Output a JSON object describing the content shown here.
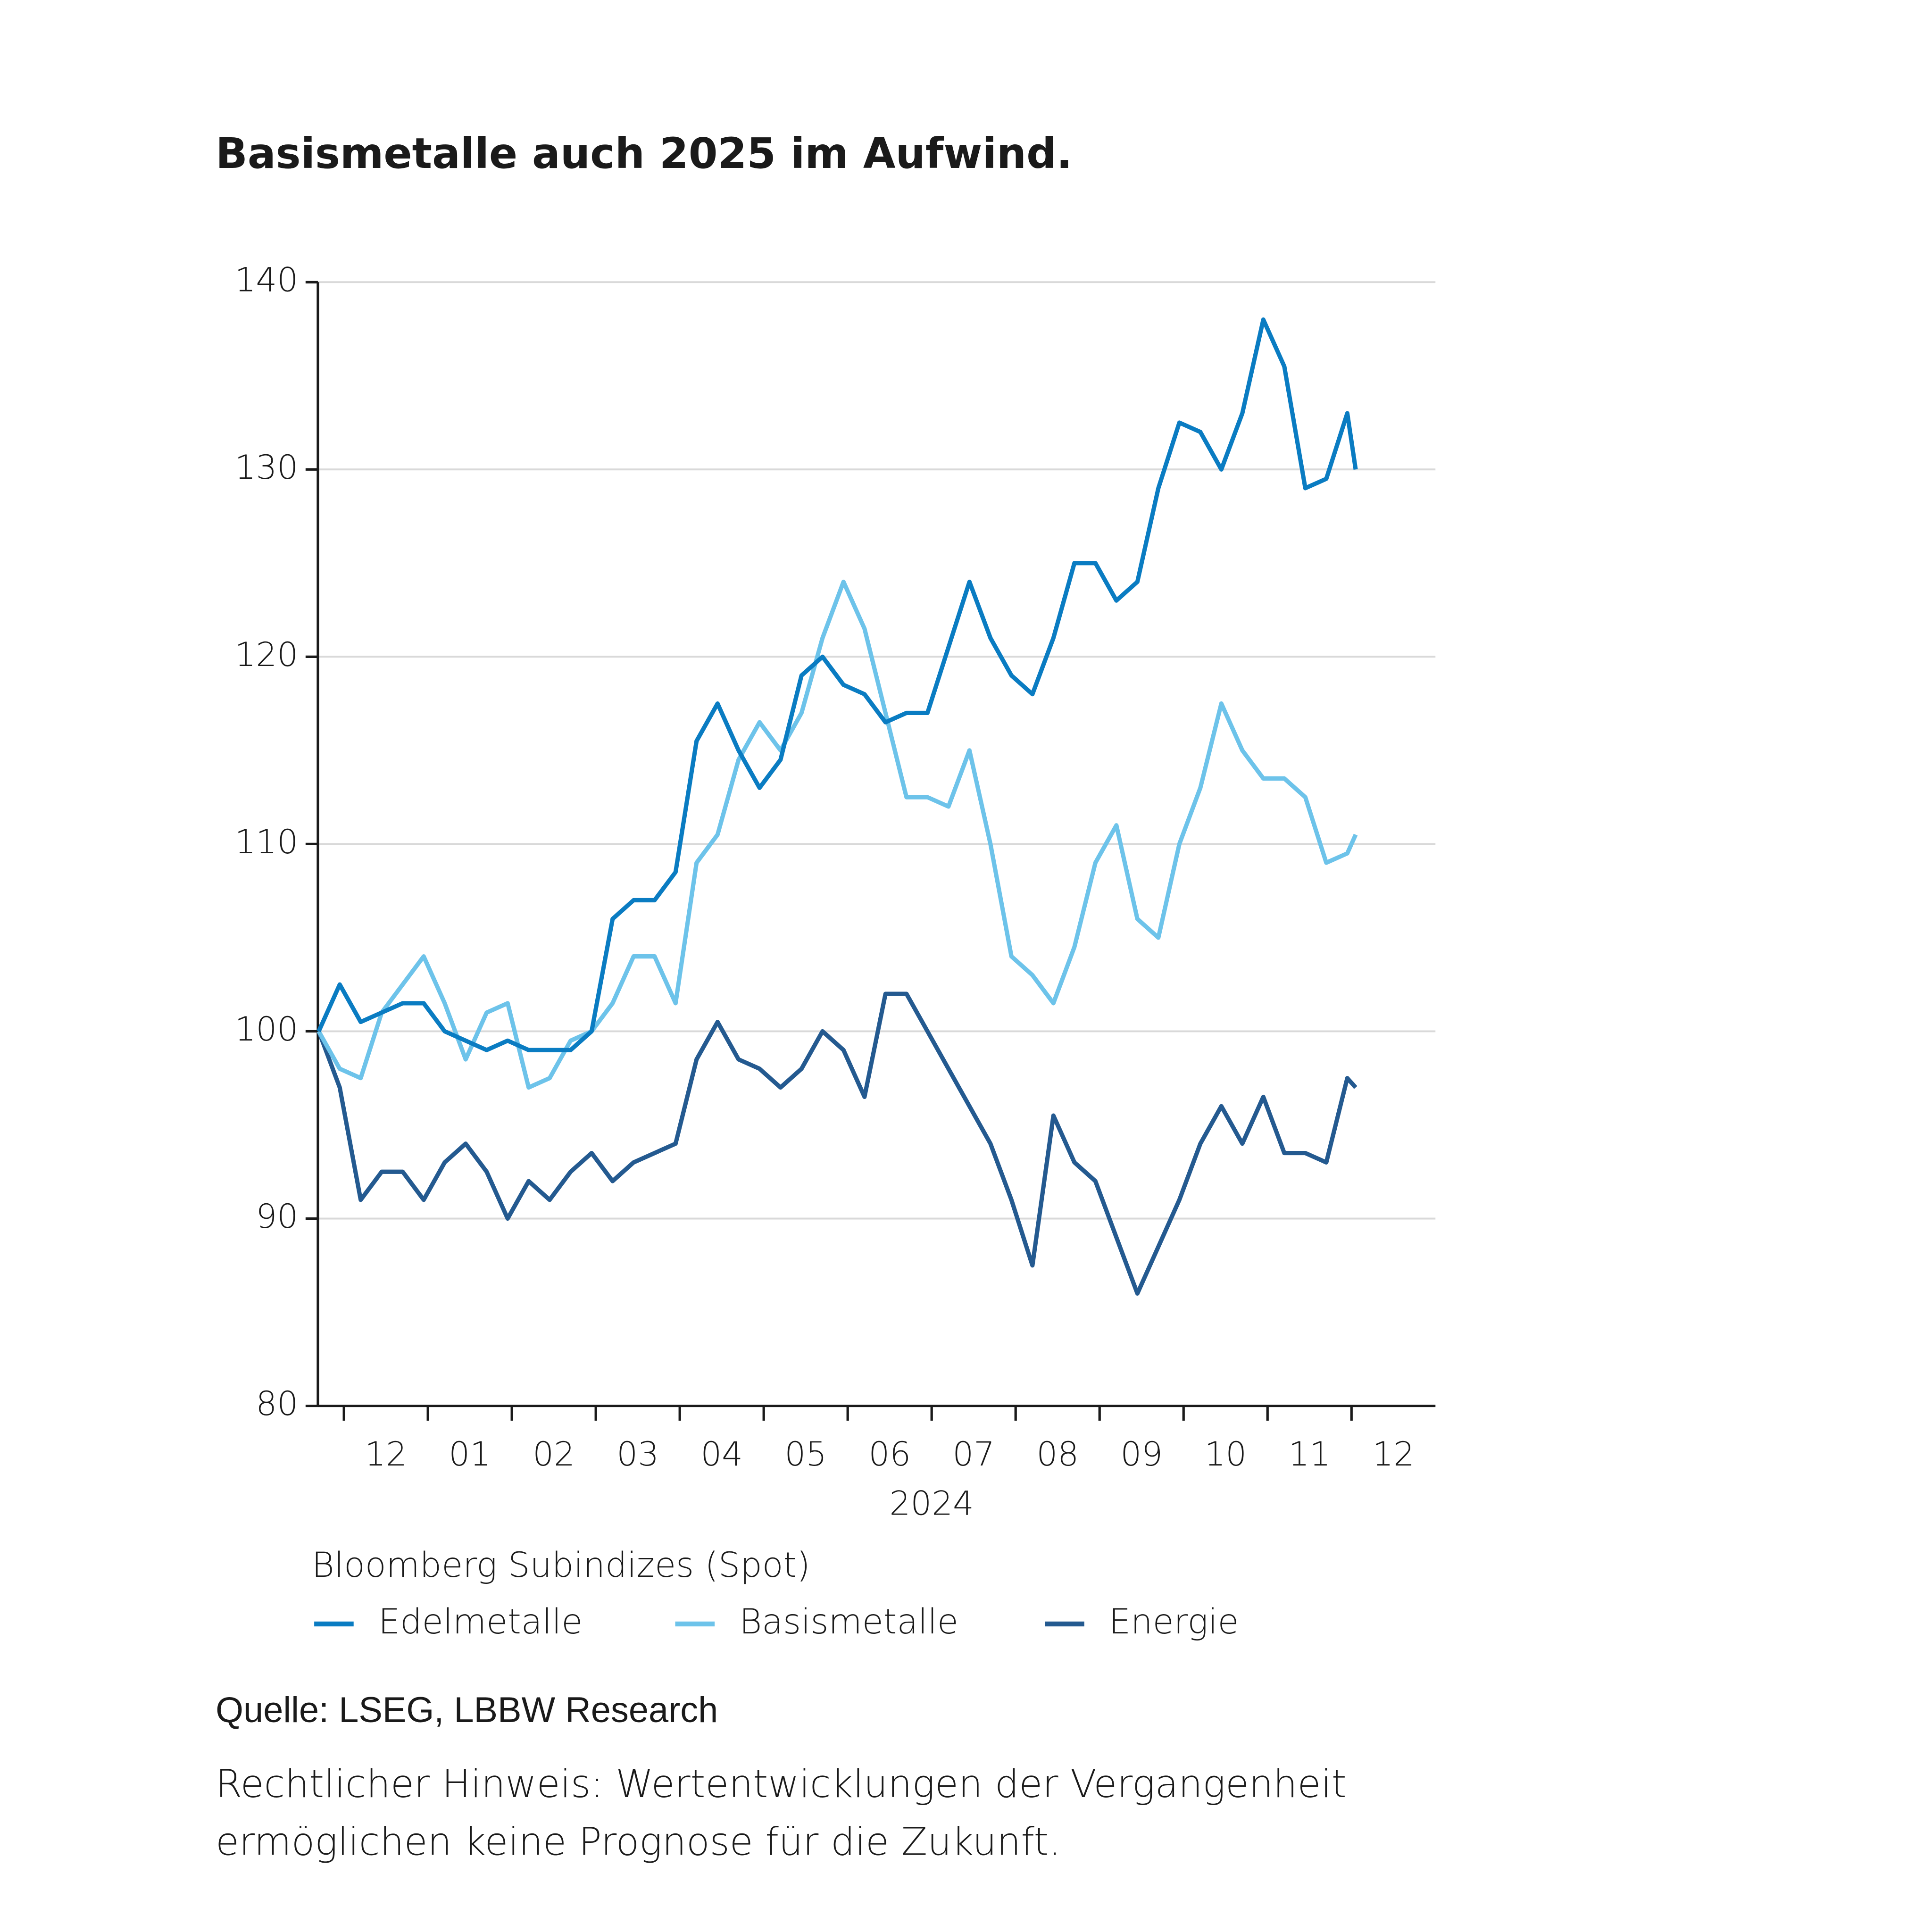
{
  "chart_data": {
    "type": "line",
    "title": "Basismetalle auch 2025 im Aufwind.",
    "xlabel": "2024",
    "legend_title": "Bloomberg Subindizes (Spot)",
    "source": "Quelle: LSEG, LBBW Research",
    "note": [
      "Rechtlicher Hinweis: Wertentwicklungen der Vergangenheit",
      "ermöglichen keine Prognose für die Zukunft."
    ],
    "grid": true,
    "xlim": [
      0.69,
      14
    ],
    "xticks": [
      {
        "value": 1,
        "label": "12"
      },
      {
        "value": 2,
        "label": "01"
      },
      {
        "value": 3,
        "label": "02"
      },
      {
        "value": 4,
        "label": "03"
      },
      {
        "value": 5,
        "label": "04"
      },
      {
        "value": 6,
        "label": "05"
      },
      {
        "value": 7,
        "label": "06"
      },
      {
        "value": 8,
        "label": "07"
      },
      {
        "value": 9,
        "label": "08"
      },
      {
        "value": 10,
        "label": "09"
      },
      {
        "value": 11,
        "label": "10"
      },
      {
        "value": 12,
        "label": "11"
      },
      {
        "value": 13,
        "label": "12"
      }
    ],
    "ylim": [
      80,
      140
    ],
    "yticks": [
      80,
      90,
      100,
      110,
      120,
      130,
      140
    ],
    "x": [
      0.7,
      0.95,
      1.2,
      1.45,
      1.7,
      1.95,
      2.2,
      2.45,
      2.7,
      2.95,
      3.2,
      3.45,
      3.7,
      3.95,
      4.2,
      4.45,
      4.7,
      4.95,
      5.2,
      5.45,
      5.7,
      5.95,
      6.2,
      6.45,
      6.7,
      6.95,
      7.2,
      7.45,
      7.7,
      7.95,
      8.2,
      8.45,
      8.7,
      8.95,
      9.2,
      9.45,
      9.7,
      9.95,
      10.2,
      10.45,
      10.7,
      10.95,
      11.2,
      11.45,
      11.7,
      11.95,
      12.2,
      12.45,
      12.7,
      12.95,
      13.05
    ],
    "series": [
      {
        "name": "Edelmetalle",
        "color": "#0a7cc2",
        "values": [
          100,
          102.5,
          100.5,
          101,
          101.5,
          101.5,
          100,
          99.5,
          99,
          99.5,
          99,
          99,
          99,
          100,
          106,
          107,
          107,
          108.5,
          115.5,
          117.5,
          115,
          113,
          114.5,
          119,
          120,
          118.5,
          118,
          116.5,
          117,
          117,
          120.5,
          124,
          121,
          119,
          118,
          121,
          125,
          125,
          123,
          124,
          129,
          132.5,
          132,
          130,
          133,
          138,
          135.5,
          129,
          129.5,
          133,
          130
        ]
      },
      {
        "name": "Basismetalle",
        "color": "#6dc3ea",
        "values": [
          100,
          98,
          97.5,
          101,
          102.5,
          104,
          101.5,
          98.5,
          101,
          101.5,
          97,
          97.5,
          99.5,
          100,
          101.5,
          104,
          104,
          101.5,
          109,
          110.5,
          114.5,
          116.5,
          115,
          117,
          121,
          124,
          121.5,
          117,
          112.5,
          112.5,
          112,
          115,
          110,
          104,
          103,
          101.5,
          104.5,
          109,
          111,
          106,
          105,
          110,
          113,
          117.5,
          115,
          113.5,
          113.5,
          112.5,
          109,
          109.5,
          110.5
        ]
      },
      {
        "name": "Energie",
        "color": "#245a90",
        "values": [
          100,
          97,
          91,
          92.5,
          92.5,
          91,
          93,
          94,
          92.5,
          90,
          92,
          91,
          92.5,
          93.5,
          92,
          93,
          93.5,
          94,
          98.5,
          100.5,
          98.5,
          98,
          97,
          98,
          100,
          99,
          96.5,
          102,
          102,
          100,
          98,
          96,
          94,
          91,
          87.5,
          95.5,
          93,
          92,
          89,
          86,
          88.5,
          91,
          94,
          96,
          94,
          96.5,
          93.5,
          93.5,
          93,
          97.5,
          97
        ]
      }
    ]
  }
}
